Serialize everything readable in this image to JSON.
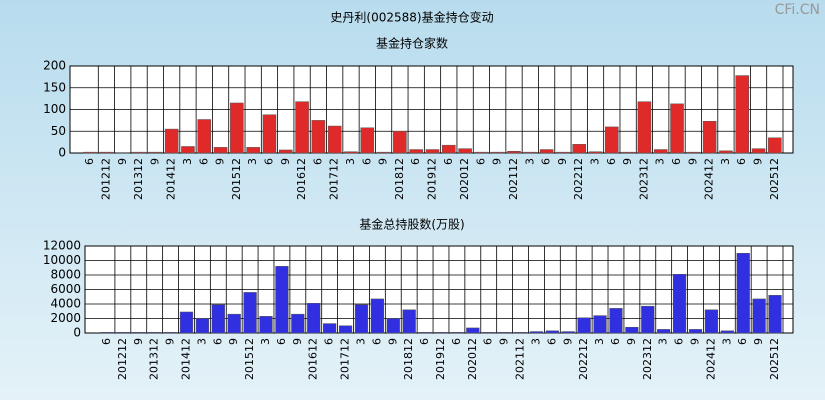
{
  "title": "史丹利(002588)基金持仓变动",
  "watermark": "CFi.CN",
  "chart_data": [
    {
      "type": "bar",
      "title": "基金持仓家数",
      "categories": [
        "6",
        "201212",
        "9",
        "201312",
        "9",
        "201412",
        "3",
        "6",
        "9",
        "201512",
        "3",
        "6",
        "9",
        "201612",
        "6",
        "201712",
        "3",
        "6",
        "9",
        "201812",
        "6",
        "201912",
        "6",
        "202012",
        "6",
        "9",
        "202112",
        "3",
        "6",
        "9",
        "202212",
        "3",
        "6",
        "9",
        "202312",
        "3",
        "6",
        "9",
        "202412",
        "3",
        "6",
        "9",
        "202512"
      ],
      "values": [
        2,
        2,
        1,
        2,
        2,
        55,
        15,
        77,
        13,
        115,
        13,
        88,
        7,
        118,
        75,
        62,
        3,
        58,
        2,
        50,
        8,
        8,
        18,
        10,
        2,
        2,
        4,
        2,
        8,
        2,
        20,
        3,
        60,
        2,
        118,
        8,
        113,
        2,
        73,
        5,
        178,
        10,
        35
      ],
      "color": "#e02a2a",
      "ylim": [
        0,
        200
      ],
      "yticks": [
        0,
        50,
        100,
        150,
        200
      ],
      "grid": true
    },
    {
      "type": "bar",
      "title": "基金总持股数(万股)",
      "categories": [
        "6",
        "201212",
        "9",
        "201312",
        "9",
        "201412",
        "3",
        "6",
        "9",
        "201512",
        "3",
        "6",
        "9",
        "201612",
        "6",
        "201712",
        "3",
        "6",
        "9",
        "201812",
        "6",
        "201912",
        "6",
        "202012",
        "6",
        "9",
        "202112",
        "3",
        "6",
        "9",
        "202212",
        "3",
        "6",
        "9",
        "202312",
        "3",
        "6",
        "9",
        "202412",
        "3",
        "6",
        "9",
        "202512"
      ],
      "values": [
        100,
        100,
        100,
        100,
        100,
        2900,
        2000,
        3900,
        2600,
        5600,
        2300,
        9200,
        2600,
        4100,
        1300,
        1000,
        3900,
        4700,
        2000,
        3200,
        100,
        100,
        100,
        700,
        100,
        100,
        100,
        200,
        300,
        200,
        2100,
        2400,
        3400,
        800,
        3700,
        500,
        8100,
        500,
        3200,
        300,
        11000,
        4700,
        5200
      ],
      "color": "#3030e0",
      "ylim": [
        0,
        12000
      ],
      "yticks": [
        0,
        2000,
        4000,
        6000,
        8000,
        10000,
        12000
      ],
      "grid": true
    }
  ]
}
